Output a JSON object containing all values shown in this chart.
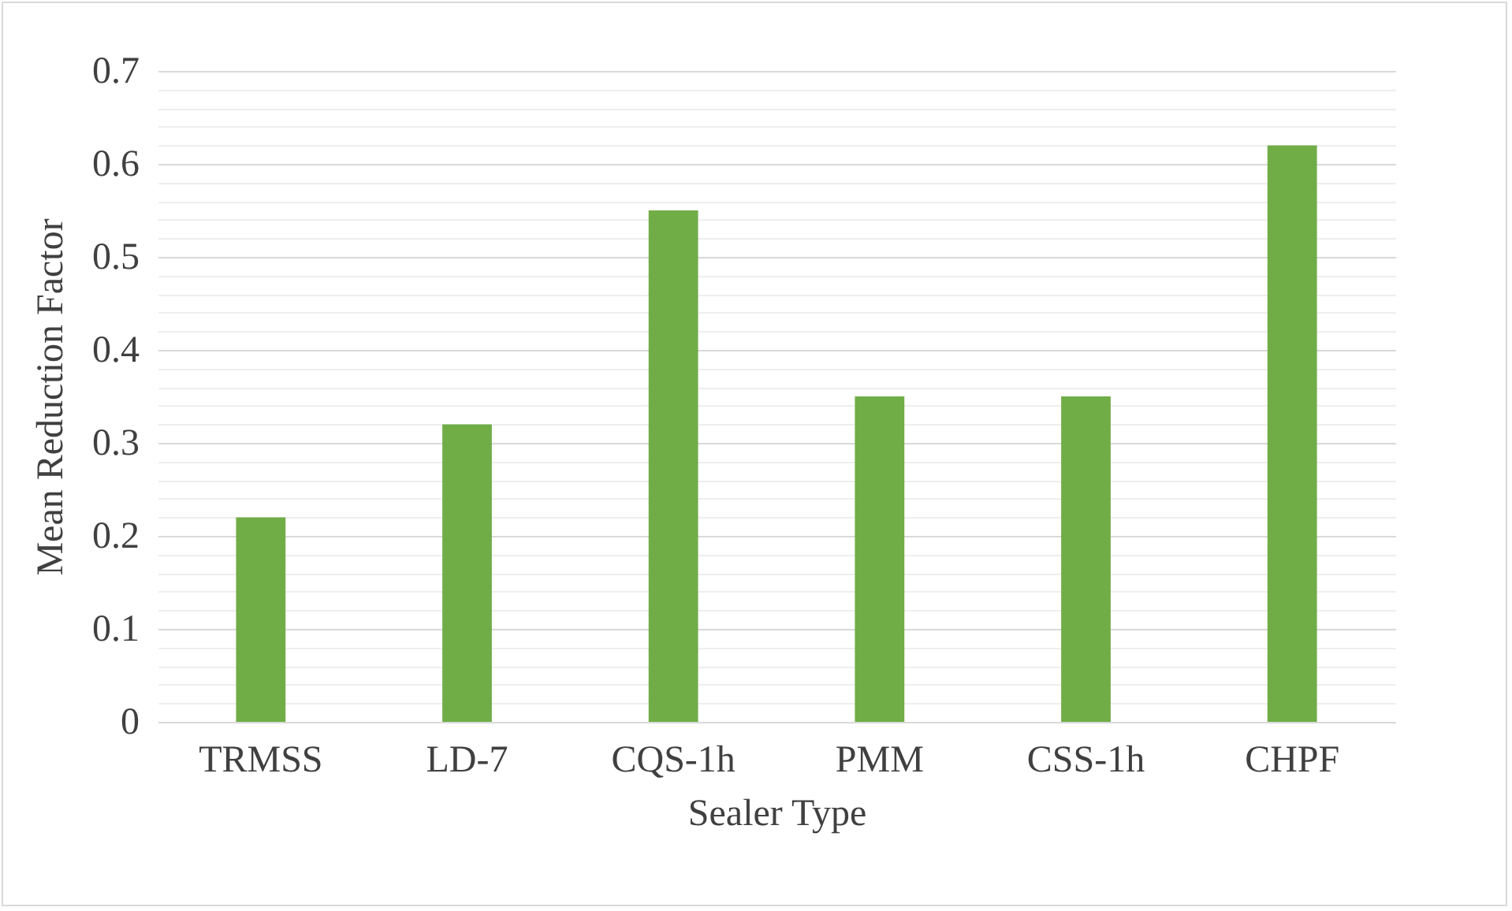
{
  "chart_data": {
    "type": "bar",
    "xlabel": "Sealer Type",
    "ylabel": "Mean Reduction Factor",
    "categories": [
      "TRMSS",
      "LD-7",
      "CQS-1h",
      "PMM",
      "CSS-1h",
      "CHPF"
    ],
    "values": [
      0.22,
      0.32,
      0.55,
      0.35,
      0.35,
      0.62
    ],
    "color": "#70ad47",
    "ylim": [
      0,
      0.7
    ],
    "yticks": [
      0,
      {
        "value": 0.02,
        "label": null
      },
      {
        "value": 0.04,
        "label": null
      },
      {
        "value": 0.06,
        "label": null
      },
      {
        "value": 0.08,
        "label": null
      },
      0.1,
      {
        "value": 0.12,
        "label": null
      },
      {
        "value": 0.14,
        "label": null
      },
      {
        "value": 0.16,
        "label": null
      },
      {
        "value": 0.18,
        "label": null
      },
      0.2,
      {
        "value": 0.22,
        "label": null
      },
      {
        "value": 0.24,
        "label": null
      },
      {
        "value": 0.26,
        "label": null
      },
      {
        "value": 0.28,
        "label": null
      },
      0.3,
      {
        "value": 0.32,
        "label": null
      },
      {
        "value": 0.34,
        "label": null
      },
      {
        "value": 0.36,
        "label": null
      },
      {
        "value": 0.38,
        "label": null
      },
      0.4,
      {
        "value": 0.42,
        "label": null
      },
      {
        "value": 0.44,
        "label": null
      },
      {
        "value": 0.46,
        "label": null
      },
      {
        "value": 0.48,
        "label": null
      },
      0.5,
      {
        "value": 0.52,
        "label": null
      },
      {
        "value": 0.54,
        "label": null
      },
      {
        "value": 0.56,
        "label": null
      },
      {
        "value": 0.58,
        "label": null
      },
      0.6,
      {
        "value": 0.62,
        "label": null
      },
      {
        "value": 0.64,
        "label": null
      },
      {
        "value": 0.66,
        "label": null
      },
      {
        "value": 0.68,
        "label": null
      },
      0.7
    ],
    "grid": "y"
  }
}
